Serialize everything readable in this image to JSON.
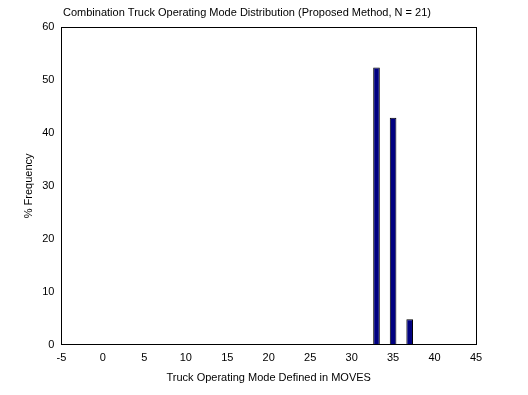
{
  "chart_data": {
    "type": "bar",
    "title": "Combination Truck Operating Mode Distribution (Proposed Method, N = 21)",
    "x_label": "Truck Operating Mode Defined in MOVES",
    "y_label": "% Frequency",
    "x": [
      33,
      35,
      37
    ],
    "values": [
      52.4,
      42.9,
      4.8
    ],
    "color": "#000080",
    "xlim": [
      -5,
      45
    ],
    "xticks": [
      -5,
      0,
      5,
      10,
      15,
      20,
      25,
      30,
      35,
      40,
      45
    ],
    "ylim": [
      0,
      60
    ],
    "yticks": [
      0,
      10,
      20,
      30,
      40,
      50,
      60
    ],
    "grid": false
  }
}
